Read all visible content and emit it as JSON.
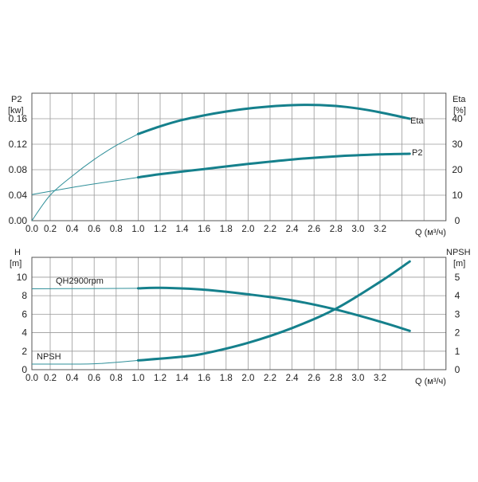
{
  "chart_data": [
    {
      "type": "line",
      "left_axis": {
        "label": "P2",
        "unit": "[kw]",
        "ticks": [
          "0.00",
          "0.04",
          "0.08",
          "0.12",
          "0.16"
        ],
        "range": [
          0,
          0.2
        ]
      },
      "right_axis": {
        "label": "Eta",
        "unit": "[%]",
        "ticks": [
          "0",
          "10",
          "20",
          "30",
          "40"
        ],
        "range": [
          0,
          50
        ]
      },
      "x_axis": {
        "label": "Q (м³/ч)",
        "ticks": [
          "0.0",
          "0.2",
          "0.4",
          "0.6",
          "0.8",
          "1.0",
          "1.2",
          "1.4",
          "1.6",
          "1.8",
          "2.0",
          "2.2",
          "2.4",
          "2.6",
          "2.8",
          "3.0",
          "3.2"
        ],
        "range": [
          0,
          3.8
        ]
      },
      "grid": true,
      "series": [
        {
          "name": "Eta",
          "axis": "right",
          "color": "#15808c",
          "x": [
            0,
            0.2,
            0.4,
            0.6,
            0.8,
            1.0,
            1.2,
            1.4,
            1.6,
            1.8,
            2.0,
            2.2,
            2.4,
            2.6,
            2.8,
            3.0,
            3.2,
            3.47
          ],
          "y": [
            0,
            10,
            17.5,
            24,
            29.5,
            34,
            37,
            39.5,
            41.3,
            42.8,
            44,
            44.8,
            45.3,
            45.4,
            45,
            44,
            42.5,
            40
          ]
        },
        {
          "name": "P2",
          "axis": "left",
          "color": "#15808c",
          "x": [
            0,
            0.5,
            1.0,
            1.2,
            1.6,
            2.0,
            2.4,
            2.8,
            3.2,
            3.47
          ],
          "y": [
            0.041,
            0.055,
            0.068,
            0.073,
            0.081,
            0.089,
            0.096,
            0.101,
            0.104,
            0.105
          ]
        }
      ]
    },
    {
      "type": "line",
      "left_axis": {
        "label": "H",
        "unit": "[m]",
        "ticks": [
          "0",
          "2",
          "4",
          "6",
          "8",
          "10"
        ],
        "range": [
          0,
          12.15
        ]
      },
      "right_axis": {
        "label": "NPSH",
        "unit": "[m]",
        "ticks": [
          "0",
          "1",
          "2",
          "3",
          "4",
          "5"
        ],
        "range": [
          0,
          6.075
        ]
      },
      "x_axis": {
        "label": "Q (м³/ч)",
        "ticks": [
          "0.0",
          "0.2",
          "0.4",
          "0.6",
          "0.8",
          "1.0",
          "1.2",
          "1.4",
          "1.6",
          "1.8",
          "2.0",
          "2.2",
          "2.4",
          "2.6",
          "2.8",
          "3.0",
          "3.2"
        ],
        "range": [
          0,
          3.8
        ]
      },
      "grid": true,
      "series": [
        {
          "name": "QH2900rpm",
          "axis": "left",
          "color": "#15808c",
          "x": [
            0,
            0.5,
            1.0,
            1.2,
            1.6,
            2.0,
            2.4,
            2.8,
            3.2,
            3.47
          ],
          "y": [
            8.75,
            8.77,
            8.8,
            8.85,
            8.65,
            8.15,
            7.5,
            6.5,
            5.2,
            4.2
          ]
        },
        {
          "name": "NPSH",
          "axis": "right",
          "color": "#15808c",
          "x": [
            0,
            0.6,
            1.0,
            1.4,
            1.6,
            2.0,
            2.4,
            2.8,
            3.2,
            3.47
          ],
          "y": [
            0.3,
            0.32,
            0.5,
            0.7,
            0.87,
            1.45,
            2.25,
            3.3,
            4.75,
            5.85
          ]
        }
      ]
    }
  ]
}
